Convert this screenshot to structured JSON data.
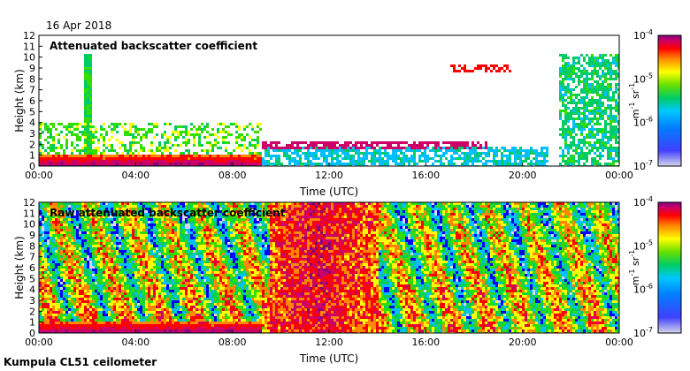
{
  "date": "16 Apr 2018",
  "footer": "Kumpula CL51 ceilometer",
  "colors": {
    "scale": [
      "#d6d6ea",
      "#0000ff",
      "#00bfff",
      "#00cc66",
      "#33dd00",
      "#ffff00",
      "#ff8800",
      "#ff0000",
      "#cc0066",
      "#800080"
    ],
    "raw_background": "#d8dbe6"
  },
  "chart_data": [
    {
      "type": "heatmap",
      "title": "Attenuated backscatter coefficient",
      "xlabel": "Time (UTC)",
      "ylabel": "Height (km)",
      "xticks": [
        "00:00",
        "04:00",
        "08:00",
        "12:00",
        "16:00",
        "20:00",
        "00:00"
      ],
      "xlim_hours": [
        0,
        24
      ],
      "yticks": [
        "0",
        "1",
        "2",
        "3",
        "4",
        "5",
        "6",
        "7",
        "8",
        "9",
        "10",
        "11",
        "12"
      ],
      "ylim": [
        0,
        12
      ],
      "colorbar": {
        "scale": "log",
        "min_label": "10",
        "min_exp": "-7",
        "max_label": "10",
        "max_exp": "-4",
        "labels": [
          "10",
          "10",
          "10",
          "10"
        ],
        "exps": [
          "-4",
          "-5",
          "-6",
          "-7"
        ],
        "unit_m": "m",
        "unit_m_exp": "-1",
        "unit_sr": "sr",
        "unit_sr_exp": "-1"
      },
      "features": [
        {
          "kind": "boundary_layer",
          "from_h": 0,
          "to_h": 9.2,
          "top_km": 1.2,
          "level": 0.95
        },
        {
          "kind": "cloud_layer",
          "from_h": 9.2,
          "to_h": 18.5,
          "height_km": 2.0,
          "level": 0.85
        },
        {
          "kind": "cloud_layer",
          "from_h": 16.8,
          "to_h": 19.5,
          "height_km": 9.0,
          "level": 0.7
        },
        {
          "kind": "precipitation",
          "at_h": 2.0,
          "top_km": 10.5
        },
        {
          "kind": "aerosol",
          "from_h": 21.5,
          "to_h": 24,
          "top_km": 10.5,
          "level": 0.35
        }
      ]
    },
    {
      "type": "heatmap",
      "title": "Raw attenuated backscatter coefficient",
      "xlabel": "Time (UTC)",
      "ylabel": "Height (km)",
      "xticks": [
        "00:00",
        "04:00",
        "08:00",
        "12:00",
        "16:00",
        "20:00",
        "00:00"
      ],
      "xlim_hours": [
        0,
        24
      ],
      "yticks": [
        "0",
        "1",
        "2",
        "3",
        "4",
        "5",
        "6",
        "7",
        "8",
        "9",
        "10",
        "11",
        "12"
      ],
      "ylim": [
        0,
        12
      ],
      "colorbar": {
        "scale": "log",
        "labels": [
          "10",
          "10",
          "10",
          "10"
        ],
        "exps": [
          "-4",
          "-5",
          "-6",
          "-7"
        ],
        "unit_m": "m",
        "unit_m_exp": "-1",
        "unit_sr": "sr",
        "unit_sr_exp": "-1"
      },
      "features": [
        {
          "kind": "noise_field",
          "from_h": 0,
          "to_h": 24,
          "level": 0.45
        },
        {
          "kind": "high_noise",
          "from_h": 9.5,
          "to_h": 14,
          "level": 0.8
        },
        {
          "kind": "boundary_layer",
          "from_h": 0,
          "to_h": 9.2,
          "top_km": 1.2,
          "level": 0.95
        }
      ]
    }
  ]
}
